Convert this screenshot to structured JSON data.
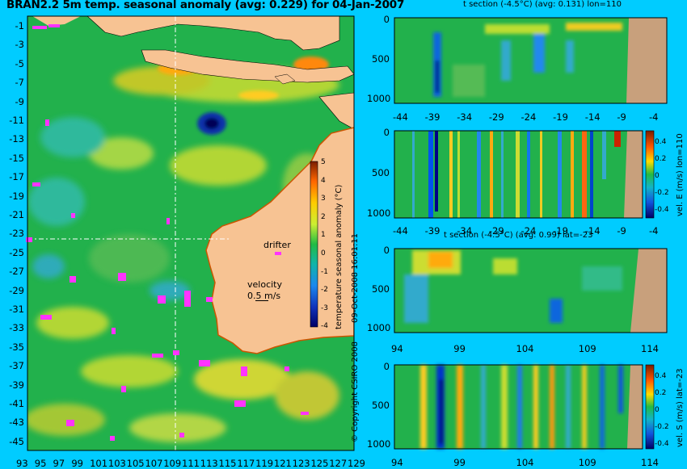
{
  "title": "BRAN2.2 5m temp. seasonal anomaly (avg: 0.229) for 04-Jan-2007",
  "map": {
    "lat_ticks": [
      "-1",
      "-3",
      "-5",
      "-7",
      "-9",
      "-11",
      "-13",
      "-15",
      "-17",
      "-19",
      "-21",
      "-23",
      "-25",
      "-27",
      "-29",
      "-31",
      "-33",
      "-35",
      "-37",
      "-39",
      "-41",
      "-43",
      "-45"
    ],
    "lon_ticks": [
      "93",
      "95",
      "97",
      "99",
      "101",
      "103",
      "105",
      "107",
      "109",
      "111",
      "113",
      "115",
      "117",
      "119",
      "121",
      "123",
      "125",
      "127",
      "129"
    ],
    "drifter_label": "drifter",
    "velocity_label": "velocity",
    "velocity_scale": "0.5 m/s",
    "colorbar_label": "temperature seasonal anomaly (°C)",
    "colorbar_ticks": [
      "5",
      "4",
      "3",
      "2",
      "1",
      "0",
      "-1",
      "-2",
      "-3",
      "-4"
    ],
    "date_stamp": "09-Oct-2008 16:01:11",
    "copyright": "© Copyright CSIRO 2008"
  },
  "panels": [
    {
      "title": "t section (-4.5°C) (avg: 0.131) lon=110",
      "x_ticks": [
        "-44",
        "-39",
        "-34",
        "-29",
        "-24",
        "-19",
        "-14",
        "-9",
        "-4"
      ],
      "y_ticks": [
        "0",
        "500",
        "1000"
      ]
    },
    {
      "title": "",
      "x_ticks": [
        "-44",
        "-39",
        "-34",
        "-29",
        "-24",
        "-19",
        "-14",
        "-9",
        "-4"
      ],
      "y_ticks": [
        "0",
        "500",
        "1000"
      ],
      "side_label": "vel. E (m/s) lon=110",
      "colorbar_ticks": [
        "0.4",
        "0.2",
        "0",
        "-0.2",
        "-0.4"
      ]
    },
    {
      "title": "t section (-4.5°C) (avg: 0.99) lat=-23",
      "x_ticks": [
        "94",
        "99",
        "104",
        "109",
        "114"
      ],
      "y_ticks": [
        "0",
        "500",
        "1000"
      ]
    },
    {
      "title": "",
      "x_ticks": [
        "94",
        "99",
        "104",
        "109",
        "114"
      ],
      "y_ticks": [
        "0",
        "500",
        "1000"
      ],
      "side_label": "vel. S (m/s) lat=-23",
      "colorbar_ticks": [
        "0.4",
        "0.2",
        "0",
        "-0.2",
        "-0.4"
      ]
    }
  ],
  "colors": {
    "background": "#00ccff",
    "ocean": "#22b14c",
    "land": "#f7c393",
    "section_land": "#c8a07c",
    "drifter": "#ff33ff"
  }
}
